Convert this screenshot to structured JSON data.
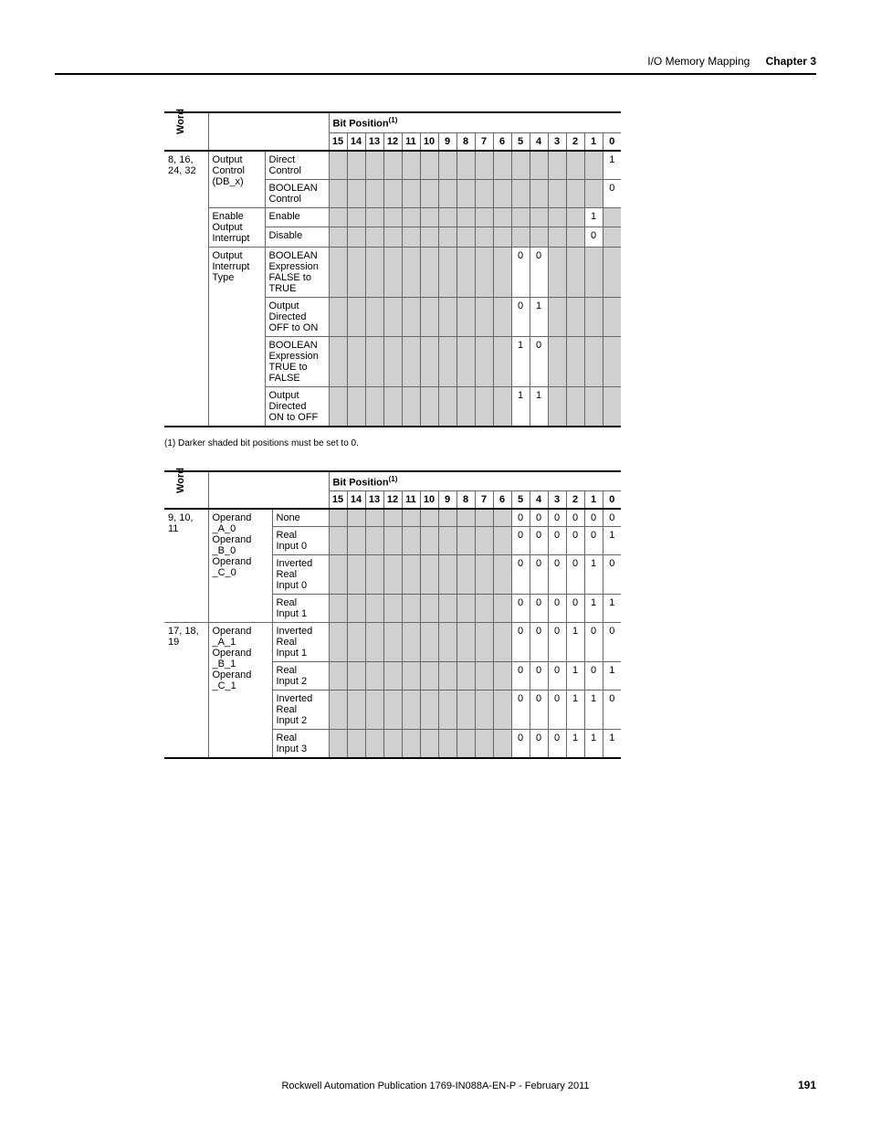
{
  "header": {
    "section": "I/O Memory Mapping",
    "chapter": "Chapter 3"
  },
  "table1": {
    "word_label": "Word",
    "bitpos_label": "Bit Position",
    "bitpos_sup": "(1)",
    "bits": [
      "15",
      "14",
      "13",
      "12",
      "11",
      "10",
      "9",
      "8",
      "7",
      "6",
      "5",
      "4",
      "3",
      "2",
      "1",
      "0"
    ],
    "word_range": "8, 16, 24, 32",
    "groups": [
      {
        "g": "Output Control (DB_x)",
        "items": [
          {
            "label": "Direct Control",
            "vals": {
              "0": "1"
            }
          },
          {
            "label": "BOOLEAN Control",
            "vals": {
              "0": "0"
            }
          }
        ]
      },
      {
        "g": "Enable Output Interrupt",
        "items": [
          {
            "label": "Enable",
            "vals": {
              "1": "1"
            }
          },
          {
            "label": "Disable",
            "vals": {
              "1": "0"
            }
          }
        ]
      },
      {
        "g": "Output Interrupt Type",
        "items": [
          {
            "label": "BOOLEAN Expression FALSE to TRUE",
            "vals": {
              "5": "0",
              "4": "0"
            }
          },
          {
            "label": "Output Directed OFF to ON",
            "vals": {
              "5": "0",
              "4": "1"
            }
          },
          {
            "label": "BOOLEAN Expression TRUE to FALSE",
            "vals": {
              "5": "1",
              "4": "0"
            }
          },
          {
            "label": "Output Directed ON to OFF",
            "vals": {
              "5": "1",
              "4": "1"
            }
          }
        ]
      }
    ]
  },
  "footnote1": "(1)   Darker shaded bit positions must be set to 0.",
  "table2": {
    "word_label": "Word",
    "bitpos_label": "Bit Position",
    "bitpos_sup": "(1)",
    "bits": [
      "15",
      "14",
      "13",
      "12",
      "11",
      "10",
      "9",
      "8",
      "7",
      "6",
      "5",
      "4",
      "3",
      "2",
      "1",
      "0"
    ],
    "sections": [
      {
        "word": "9, 10, 11",
        "group": "Operand_A_0 Operand_B_0 Operand_C_0",
        "rows": [
          {
            "label": "None",
            "vals": [
              "0",
              "0",
              "0",
              "0",
              "0",
              "0"
            ]
          },
          {
            "label": "Real Input 0",
            "vals": [
              "0",
              "0",
              "0",
              "0",
              "0",
              "1"
            ]
          },
          {
            "label": "Inverted Real Input 0",
            "vals": [
              "0",
              "0",
              "0",
              "0",
              "1",
              "0"
            ]
          },
          {
            "label": "Real Input 1",
            "vals": [
              "0",
              "0",
              "0",
              "0",
              "1",
              "1"
            ]
          }
        ]
      },
      {
        "word": "17, 18, 19",
        "group": "Operand_A_1 Operand_B_1 Operand_C_1",
        "rows": [
          {
            "label": "Inverted Real Input 1",
            "vals": [
              "0",
              "0",
              "0",
              "1",
              "0",
              "0"
            ]
          },
          {
            "label": "Real Input 2",
            "vals": [
              "0",
              "0",
              "0",
              "1",
              "0",
              "1"
            ]
          },
          {
            "label": "Inverted Real Input 2",
            "vals": [
              "0",
              "0",
              "0",
              "1",
              "1",
              "0"
            ]
          },
          {
            "label": "Real Input 3",
            "vals": [
              "0",
              "0",
              "0",
              "1",
              "1",
              "1"
            ]
          }
        ]
      }
    ]
  },
  "footer": {
    "pub": "Rockwell Automation Publication 1769-IN088A-EN-P - February 2011",
    "page": "191"
  }
}
